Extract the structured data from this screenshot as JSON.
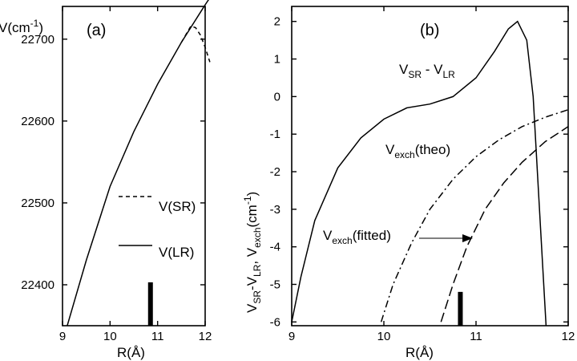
{
  "chart_data": [
    {
      "type": "line",
      "panel_label": "(a)",
      "title": "",
      "xlabel_parts": {
        "main": "R(",
        "unit": "Å",
        "end": ")"
      },
      "ylabel_parts": {
        "main": "V(cm",
        "sup": "-1",
        "end": ")"
      },
      "xlim": [
        9,
        12
      ],
      "ylim": [
        22350,
        22740
      ],
      "xticks": [
        9,
        10,
        11,
        12
      ],
      "yticks": [
        22400,
        22500,
        22600,
        22700
      ],
      "legend": {
        "placement": "right",
        "entries": [
          {
            "label": "V(SR)",
            "style": "dashed"
          },
          {
            "label": "V(LR)",
            "style": "solid"
          }
        ]
      },
      "marker_bar": {
        "x": 10.85,
        "y_range": [
          22350,
          22403
        ]
      },
      "series": [
        {
          "name": "V(LR)",
          "style": "solid",
          "x": [
            9.1,
            9.5,
            10.0,
            10.5,
            11.0,
            11.5,
            12.0,
            12.15
          ],
          "y": [
            22350,
            22430,
            22520,
            22587,
            22645,
            22696,
            22742,
            22755
          ]
        },
        {
          "name": "V(SR)",
          "style": "dashed",
          "x": [
            11.5,
            11.7,
            11.8,
            11.9,
            12.0,
            12.1
          ],
          "y": [
            22696,
            22716,
            22714,
            22705,
            22690,
            22672
          ]
        }
      ]
    },
    {
      "type": "line",
      "panel_label": "(b)",
      "title": "",
      "xlabel_parts": {
        "main": "R(",
        "unit": "Å",
        "end": ")"
      },
      "ylabel_parts": {
        "a": "V",
        "a_sub": "SR",
        "b": "-V",
        "b_sub": "LR",
        "c": ", V",
        "c_sub": "exch",
        "d": "(cm",
        "d_sup": "-1",
        "e": ")"
      },
      "xlim": [
        9,
        12
      ],
      "ylim": [
        -6.1,
        2.4
      ],
      "xticks": [
        9,
        10,
        11,
        12
      ],
      "yticks": [
        2,
        1,
        0,
        -1,
        -2,
        -3,
        -4,
        -5,
        -6
      ],
      "marker_bar": {
        "x": 10.83,
        "y_range": [
          -6.1,
          -5.2
        ]
      },
      "annotations": [
        {
          "label_main": "V",
          "label_sub": "SR",
          "label_mid": " - V",
          "label_sub2": "LR",
          "x": 9.9,
          "y": 1.0
        },
        {
          "label_main": "V",
          "label_sub": "exch",
          "label_end": "(theo)",
          "x": 10.1,
          "y": -1.4
        },
        {
          "label_main": "V",
          "label_sub": "exch",
          "label_end": "(fitted)",
          "x": 9.67,
          "y": -3.8,
          "arrow_to": [
            10.88,
            -3.85
          ]
        }
      ],
      "series": [
        {
          "name": "V_SR - V_LR",
          "style": "solid",
          "x": [
            9.0,
            9.1,
            9.25,
            9.5,
            9.75,
            10.0,
            10.25,
            10.5,
            10.75,
            11.0,
            11.2,
            11.35,
            11.45,
            11.55,
            11.62,
            11.7,
            11.76
          ],
          "y": [
            -6.0,
            -4.8,
            -3.3,
            -1.9,
            -1.1,
            -0.6,
            -0.3,
            -0.2,
            0.0,
            0.5,
            1.2,
            1.8,
            2.0,
            1.5,
            0.0,
            -3.5,
            -6.1
          ]
        },
        {
          "name": "V_exch(theo)",
          "style": "dashdot",
          "x": [
            9.97,
            10.1,
            10.3,
            10.5,
            10.75,
            11.0,
            11.25,
            11.5,
            11.75,
            12.0
          ],
          "y": [
            -6.0,
            -5.0,
            -3.9,
            -3.0,
            -2.2,
            -1.6,
            -1.15,
            -0.8,
            -0.55,
            -0.35
          ]
        },
        {
          "name": "V_exch(fitted)",
          "style": "longdash",
          "x": [
            10.62,
            10.75,
            10.9,
            11.1,
            11.3,
            11.5,
            11.75,
            12.0
          ],
          "y": [
            -6.0,
            -5.0,
            -4.0,
            -3.0,
            -2.3,
            -1.75,
            -1.2,
            -0.8
          ]
        }
      ]
    }
  ]
}
